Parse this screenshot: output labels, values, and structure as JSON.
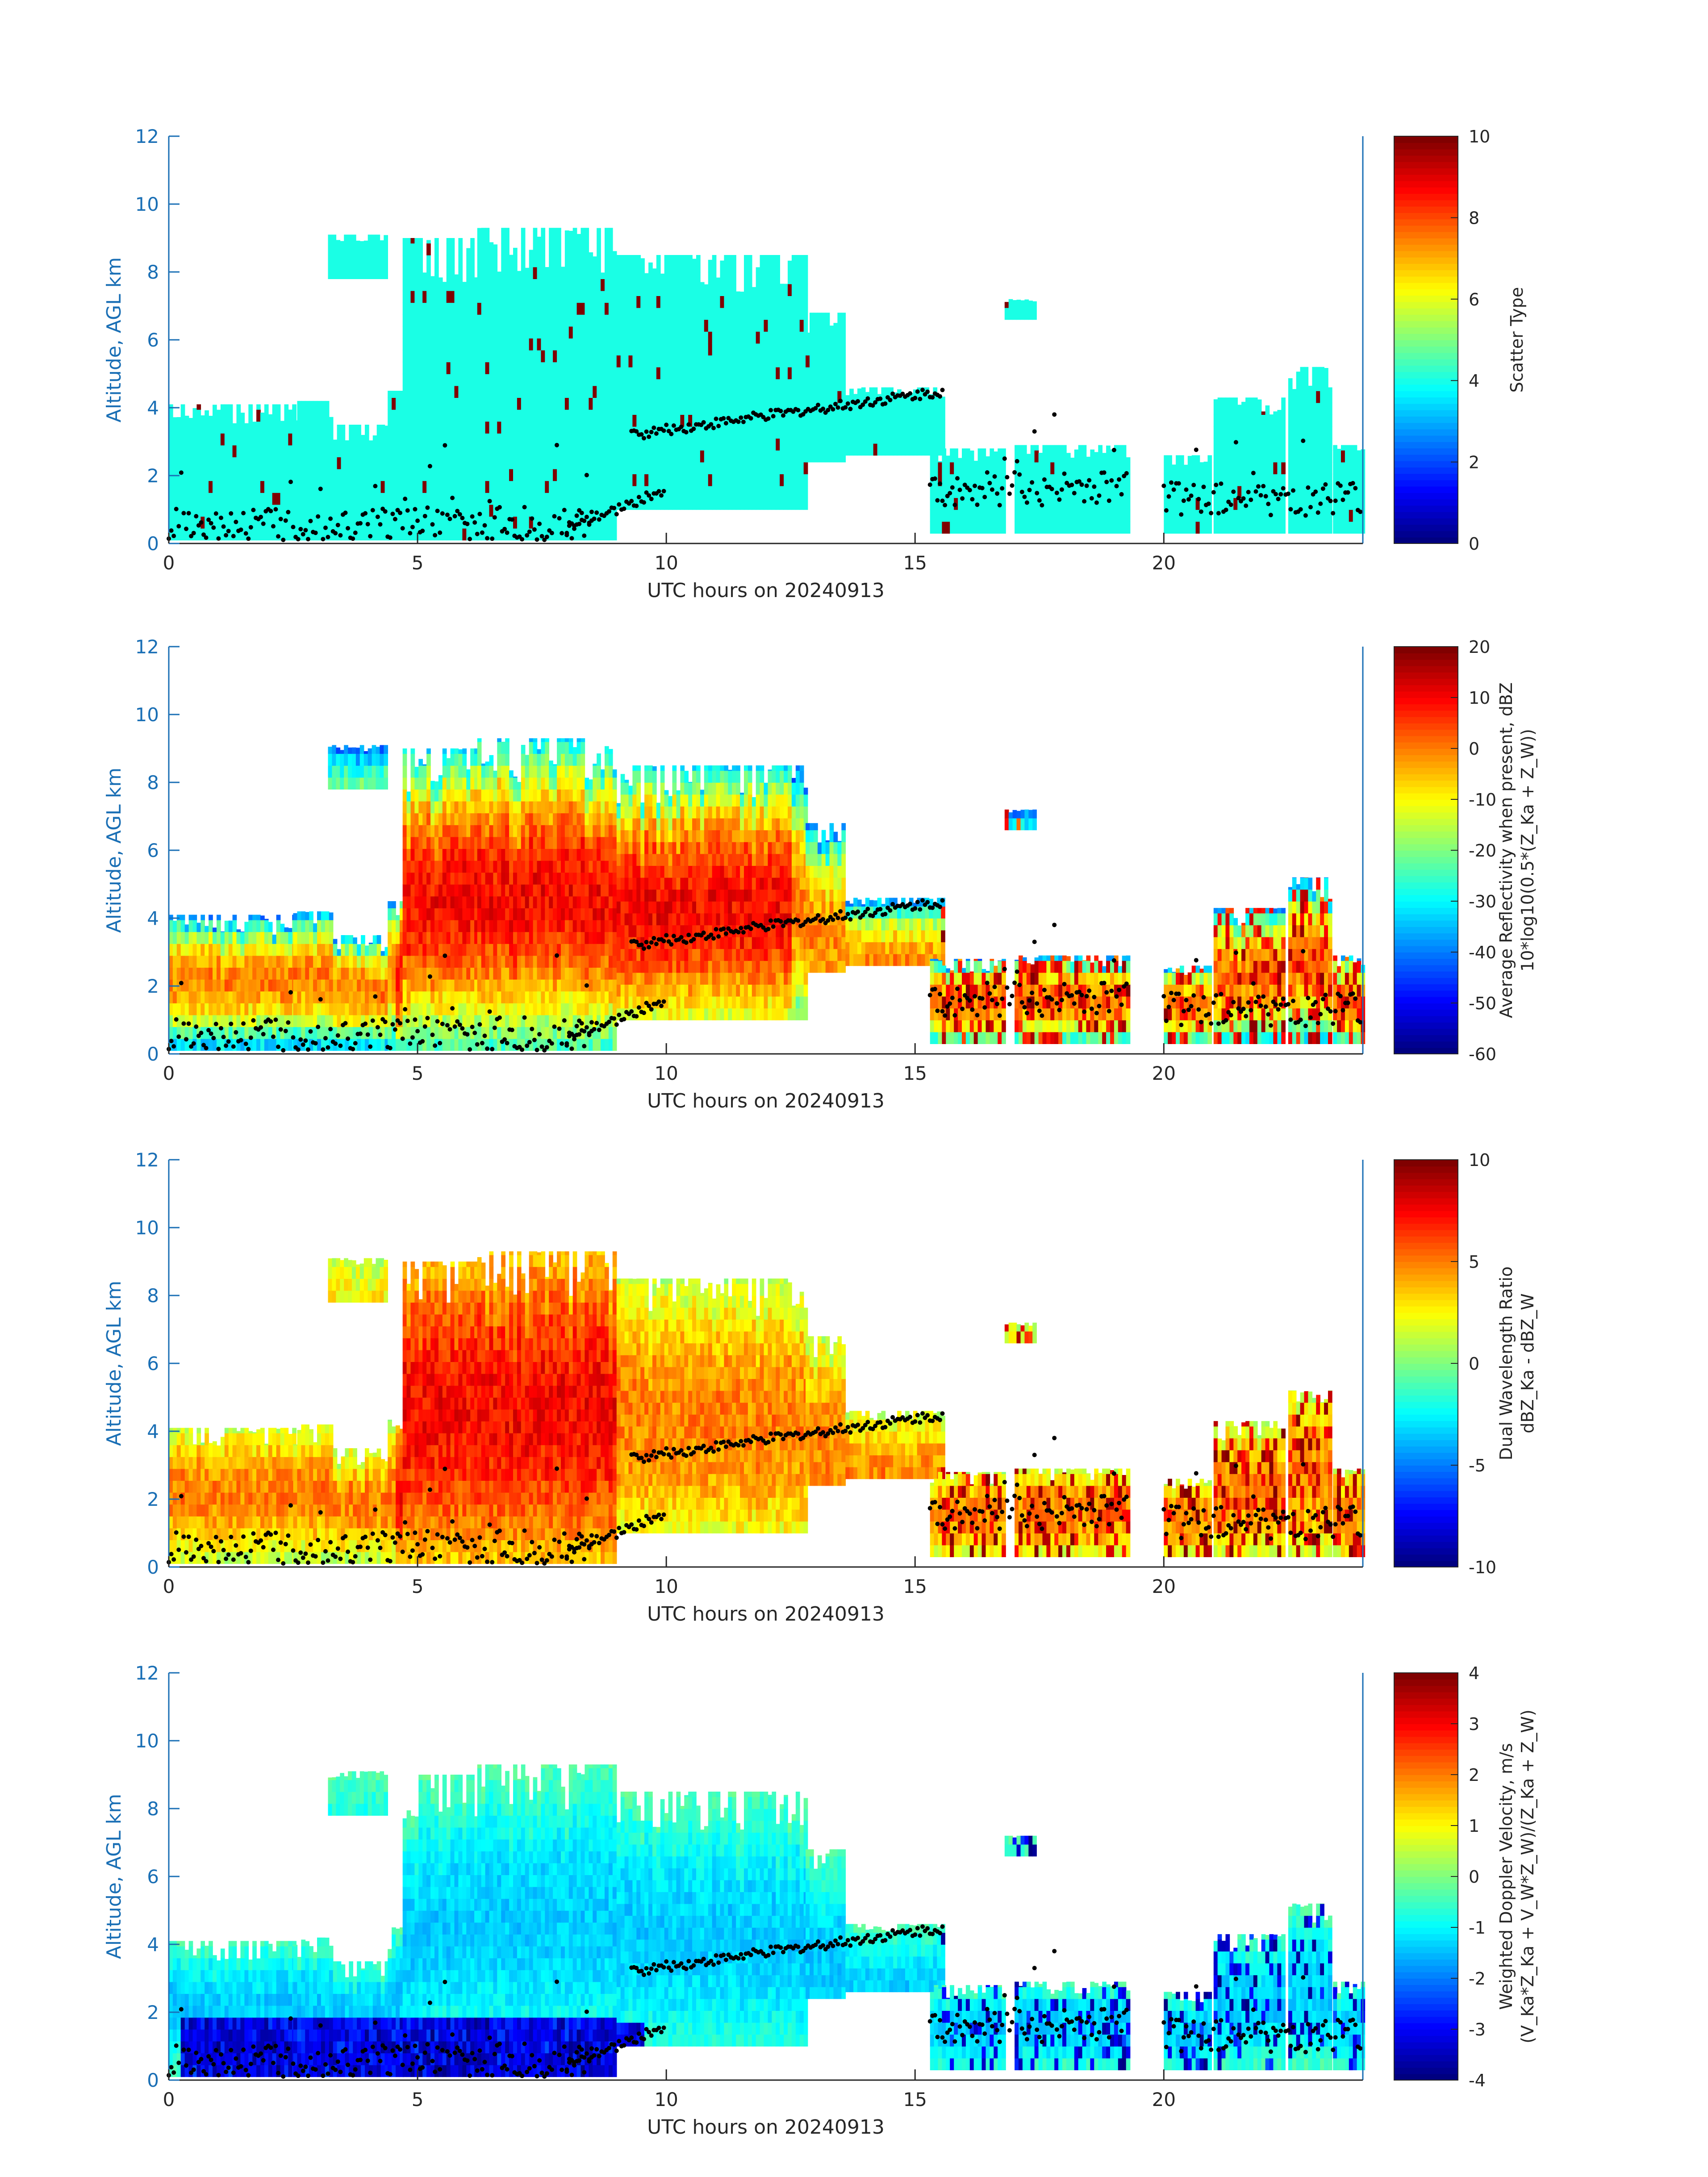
{
  "chart_data": [
    {
      "type": "heatmap",
      "ylabel": "Altitude, AGL km",
      "xlabel": "UTC hours on 20240913",
      "xlim": [
        0,
        24
      ],
      "ylim": [
        0,
        12
      ],
      "xticks": [
        0,
        5,
        10,
        15,
        20
      ],
      "yticks": [
        0,
        2,
        4,
        6,
        8,
        10,
        12
      ],
      "colorbar": {
        "label_lines": [
          "Scatter Type"
        ],
        "ticks": [
          0,
          2,
          4,
          6,
          8,
          10
        ],
        "range": [
          0,
          10
        ],
        "colormap": "jet"
      },
      "fill": "uniform",
      "fill_value": 4
    },
    {
      "type": "heatmap",
      "ylabel": "Altitude, AGL km",
      "xlabel": "UTC hours on 20240913",
      "xlim": [
        0,
        24
      ],
      "ylim": [
        0,
        12
      ],
      "xticks": [
        0,
        5,
        10,
        15,
        20
      ],
      "yticks": [
        0,
        2,
        4,
        6,
        8,
        10,
        12
      ],
      "colorbar": {
        "label_lines": [
          "Average Reflectivity when present, dBZ",
          "10*log10(0.5*(Z_Ka + Z_W))"
        ],
        "ticks": [
          -60,
          -50,
          -40,
          -30,
          -20,
          -10,
          0,
          10,
          20
        ],
        "range": [
          -60,
          20
        ],
        "colormap": "jet"
      },
      "fill": "reflectivity"
    },
    {
      "type": "heatmap",
      "ylabel": "Altitude, AGL km",
      "xlabel": "UTC hours on 20240913",
      "xlim": [
        0,
        24
      ],
      "ylim": [
        0,
        12
      ],
      "xticks": [
        0,
        5,
        10,
        15,
        20
      ],
      "yticks": [
        0,
        2,
        4,
        6,
        8,
        10,
        12
      ],
      "colorbar": {
        "label_lines": [
          "Dual Wavelength Ratio",
          "dBZ_Ka - dBZ_W"
        ],
        "ticks": [
          -10,
          -5,
          0,
          5,
          10
        ],
        "range": [
          -10,
          10
        ],
        "colormap": "jet"
      },
      "fill": "dwr"
    },
    {
      "type": "heatmap",
      "ylabel": "Altitude, AGL km",
      "xlabel": "UTC hours on 20240913",
      "xlim": [
        0,
        24
      ],
      "ylim": [
        0,
        12
      ],
      "xticks": [
        0,
        5,
        10,
        15,
        20
      ],
      "yticks": [
        0,
        2,
        4,
        6,
        8,
        10,
        12
      ],
      "colorbar": {
        "label_lines": [
          "Weighted Doppler Velocity, m/s",
          "(V_Ka*Z_Ka + V_W*Z_W)/(Z_Ka + Z_W)"
        ],
        "ticks": [
          -4,
          -3,
          -2,
          -1,
          0,
          1,
          2,
          3,
          4
        ],
        "range": [
          -4,
          4
        ],
        "colormap": "jet"
      },
      "fill": "velocity"
    }
  ],
  "echo_regions": [
    {
      "x": [
        0.0,
        2.5
      ],
      "top": 4.1,
      "bottom": 0.1
    },
    {
      "x": [
        2.5,
        3.3
      ],
      "top": 4.2,
      "bottom": 0.1
    },
    {
      "x": [
        3.2,
        4.4
      ],
      "top": 9.1,
      "bottom": 7.8
    },
    {
      "x": [
        3.3,
        4.4
      ],
      "top": 3.5,
      "bottom": 0.1
    },
    {
      "x": [
        4.4,
        4.7
      ],
      "top": 4.5,
      "bottom": 0.1
    },
    {
      "x": [
        4.7,
        6.2
      ],
      "top": 9.0,
      "bottom": 0.1
    },
    {
      "x": [
        6.2,
        9.0
      ],
      "top": 9.3,
      "bottom": 0.1
    },
    {
      "x": [
        9.0,
        12.8
      ],
      "top": 8.5,
      "bottom": 1.0
    },
    {
      "x": [
        12.8,
        13.6
      ],
      "top": 6.8,
      "bottom": 2.4
    },
    {
      "x": [
        13.6,
        15.6
      ],
      "top": 4.6,
      "bottom": 2.6
    },
    {
      "x": [
        15.3,
        16.8
      ],
      "top": 2.8,
      "bottom": 0.3
    },
    {
      "x": [
        16.8,
        17.4
      ],
      "top": 7.2,
      "bottom": 6.6
    },
    {
      "x": [
        17.0,
        19.3
      ],
      "top": 2.9,
      "bottom": 0.3
    },
    {
      "x": [
        20.0,
        20.9
      ],
      "top": 2.6,
      "bottom": 0.3
    },
    {
      "x": [
        21.0,
        22.4
      ],
      "top": 4.3,
      "bottom": 0.3
    },
    {
      "x": [
        22.5,
        23.3
      ],
      "top": 5.2,
      "bottom": 0.3
    },
    {
      "x": [
        23.4,
        24.0
      ],
      "top": 2.9,
      "bottom": 0.3
    }
  ],
  "black_dots": {
    "description_x": [
      0,
      24
    ],
    "bands": [
      {
        "x": [
          0.0,
          8.5
        ],
        "y_mean": 0.6
      },
      {
        "x": [
          8.0,
          10.0
        ],
        "y_start": 0.4,
        "y_end": 1.6
      },
      {
        "x": [
          9.3,
          15.6
        ],
        "y_start": 3.2,
        "y_end": 4.5
      },
      {
        "x": [
          15.3,
          19.3
        ],
        "y_mean": 1.6
      },
      {
        "x": [
          20.0,
          24.0
        ],
        "y_mean": 1.3
      }
    ]
  }
}
